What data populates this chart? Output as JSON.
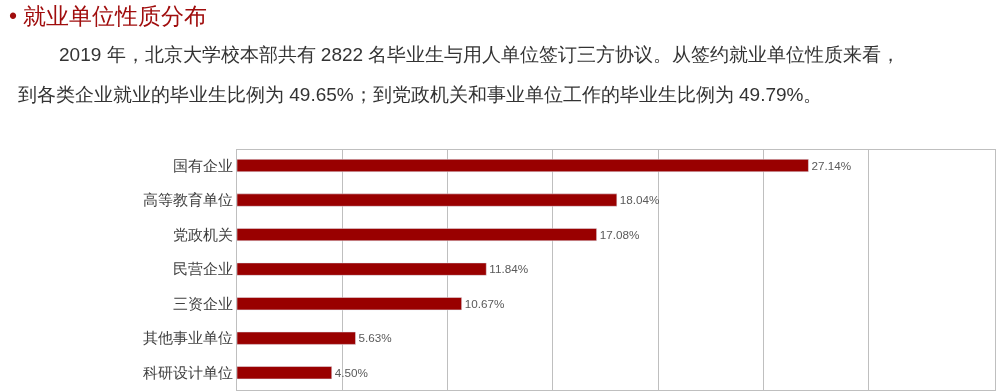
{
  "chart_data": {
    "type": "bar",
    "orientation": "horizontal",
    "title": "• 就业单位性质分布",
    "subtitle": "2019 年，北京大学校本部共有 2822 名毕业生与用人单位签订三方协议。从签约就业单位性质来看，",
    "annotations": [
      "到各类企业就业的毕业生比例为 49.65%；到党政机关和事业单位工作的毕业生比例为 49.79%。"
    ],
    "categories": [
      "国有企业",
      "高等教育单位",
      "党政机关",
      "民营企业",
      "三资企业",
      "其他事业单位",
      "科研设计单位"
    ],
    "values": [
      27.14,
      18.04,
      17.08,
      11.84,
      10.67,
      5.63,
      4.5
    ],
    "value_labels": [
      "27.14%",
      "18.04%",
      "17.08%",
      "11.84%",
      "10.67%",
      "5.63%",
      "4.50%"
    ],
    "color": "#990000",
    "xlim": [
      0,
      36
    ],
    "xticks": [
      {
        "value": 0,
        "label": null
      },
      {
        "value": 5,
        "label": null
      },
      {
        "value": 10,
        "label": null
      },
      {
        "value": 15,
        "label": null
      },
      {
        "value": 20,
        "label": null
      },
      {
        "value": 25,
        "label": null
      },
      {
        "value": 30,
        "label": null
      }
    ],
    "grid": "x",
    "legend": false,
    "tick_labels": "y"
  }
}
